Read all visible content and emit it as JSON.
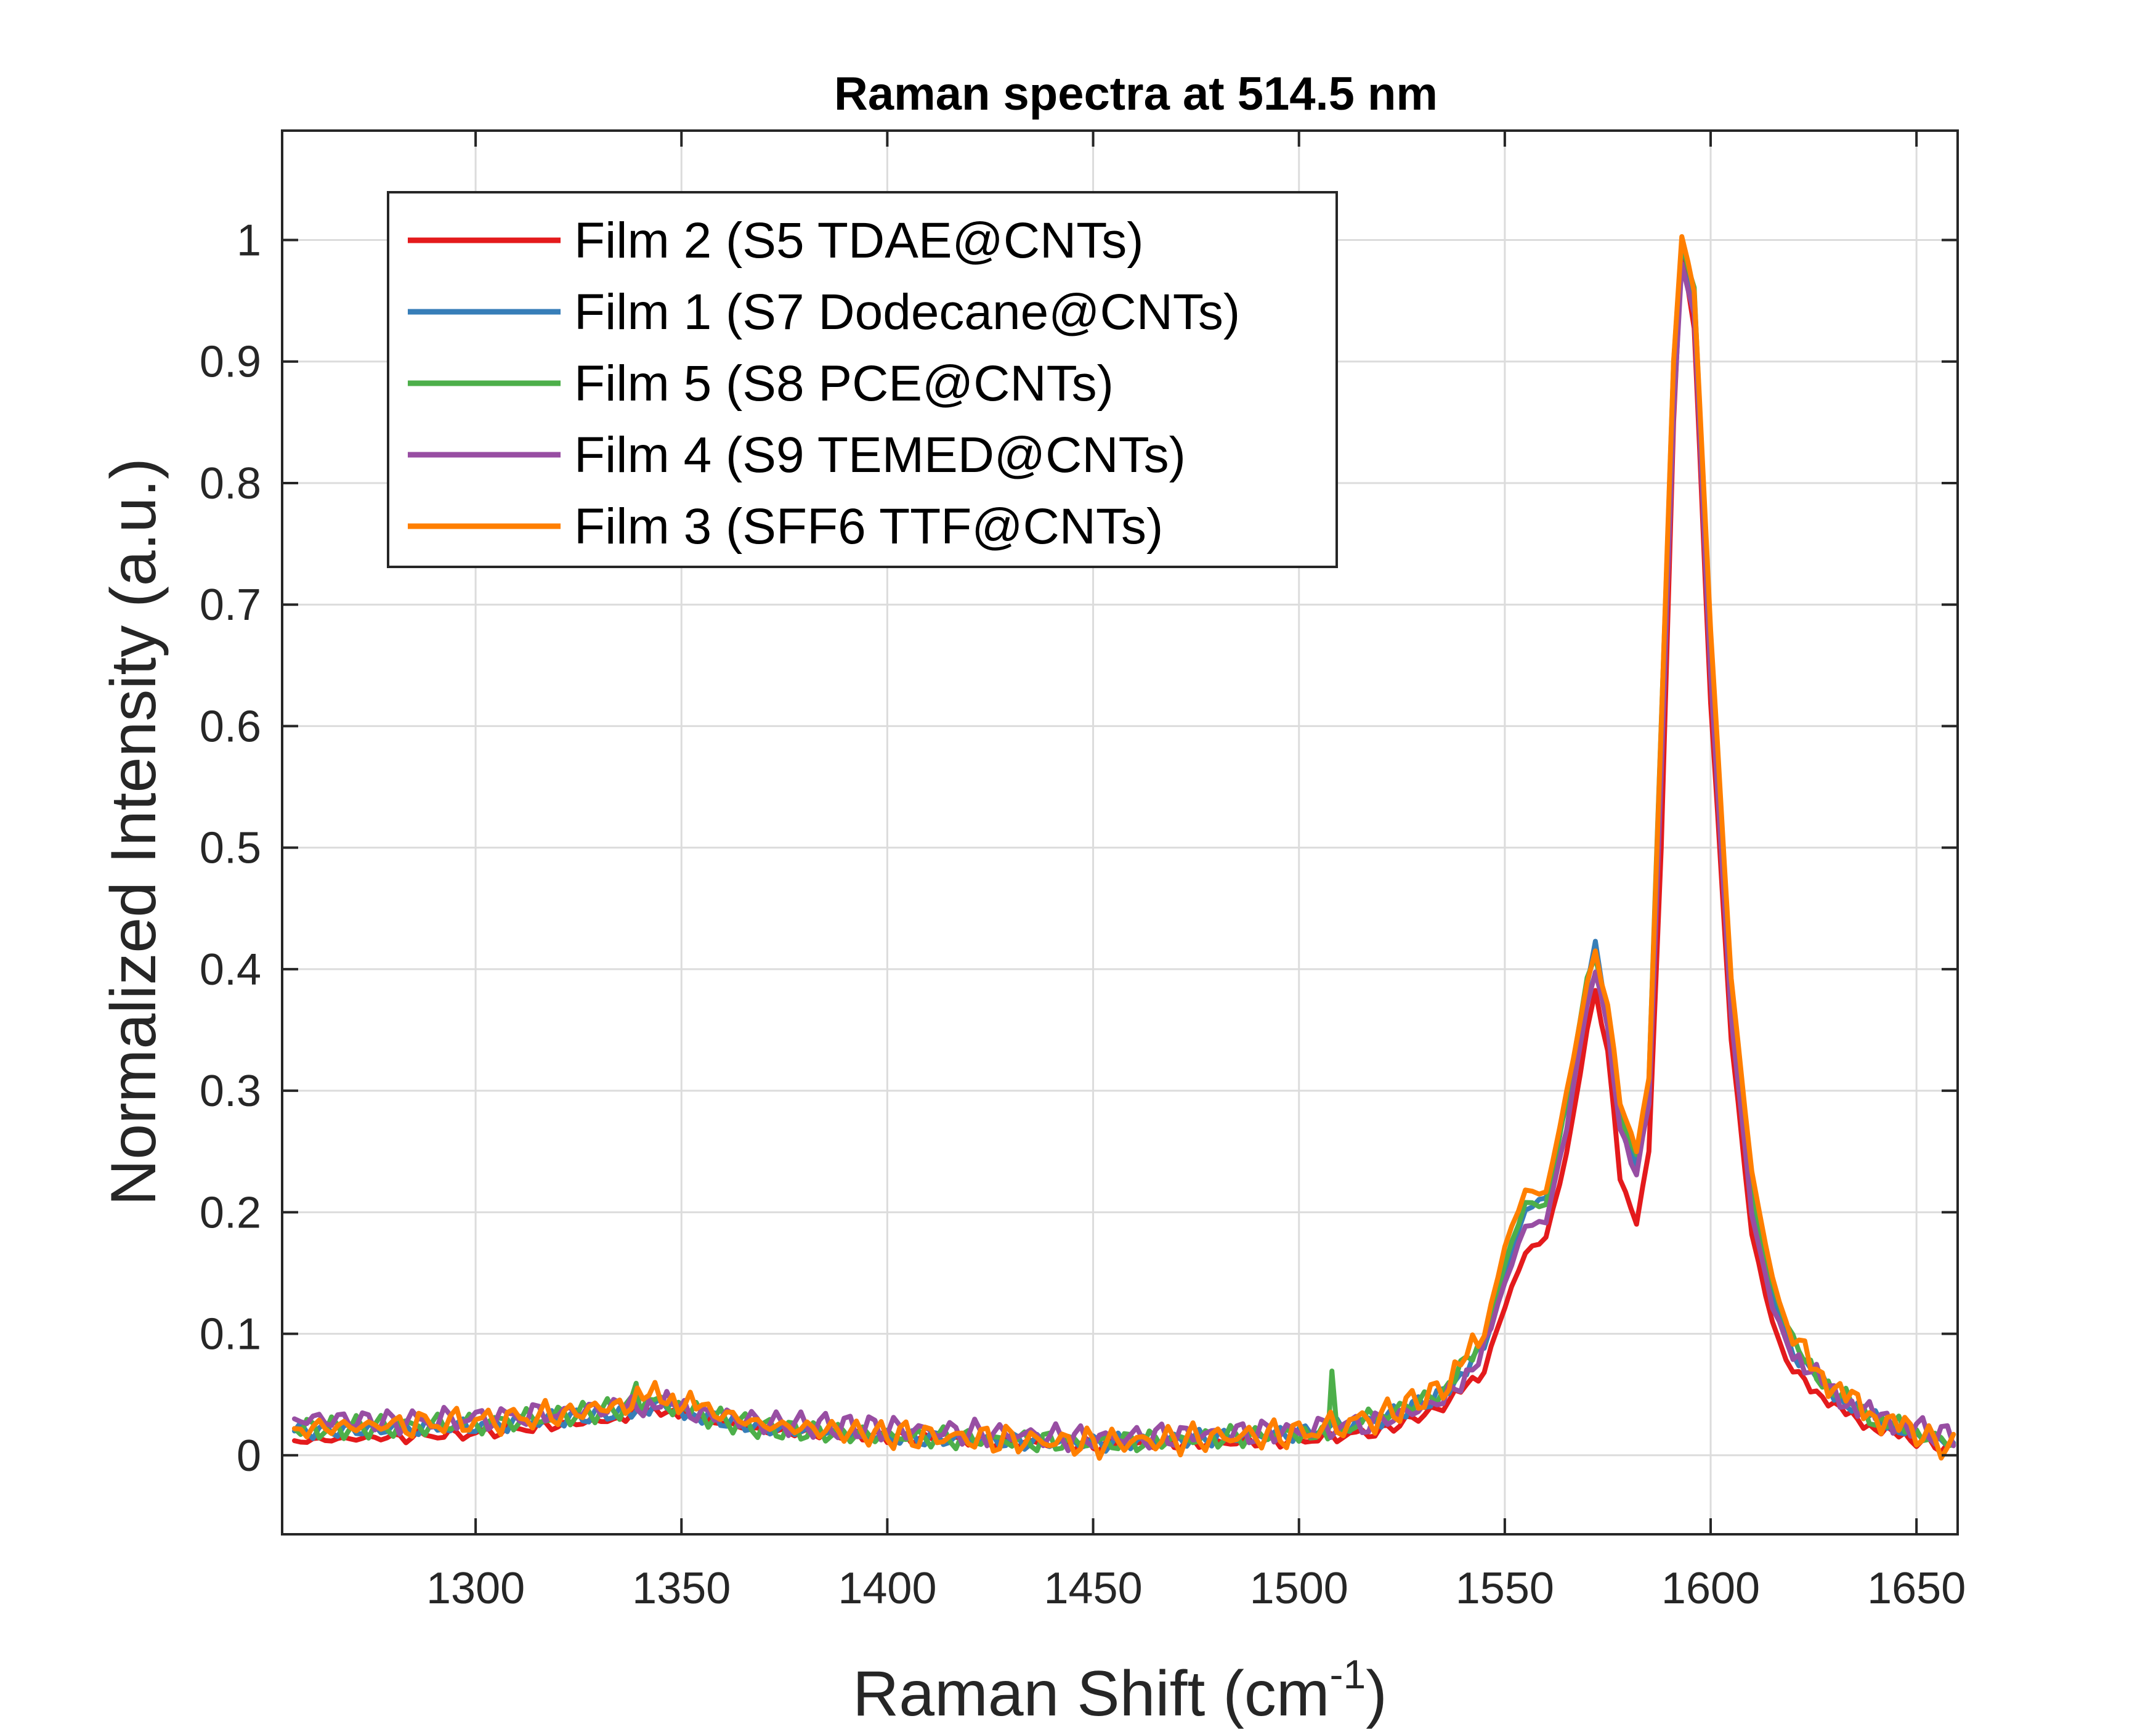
{
  "chart_data": {
    "type": "line",
    "title": "Raman spectra at 514.5 nm",
    "xlabel": "Raman Shift (cm",
    "xlabel_superscript": "-1",
    "xlabel_suffix": ")",
    "ylabel": "Normalized Intensity (a.u.)",
    "xlim": [
      1253,
      1660
    ],
    "ylim": [
      -0.065,
      1.09
    ],
    "xticks": [
      1300,
      1350,
      1400,
      1450,
      1500,
      1550,
      1600,
      1650
    ],
    "xtick_labels": [
      "1300",
      "1350",
      "1400",
      "1450",
      "1500",
      "1550",
      "1600",
      "1650"
    ],
    "yticks": [
      0,
      0.1,
      0.2,
      0.3,
      0.4,
      0.5,
      0.6,
      0.7,
      0.8,
      0.9,
      1
    ],
    "ytick_labels": [
      "0",
      "0.1",
      "0.2",
      "0.3",
      "0.4",
      "0.5",
      "0.6",
      "0.7",
      "0.8",
      "0.9",
      "1"
    ],
    "grid": true,
    "legend_position": "top-left",
    "series": [
      {
        "name": "Film 2 (S5 TDAE@CNTs)",
        "color": "#E41A1C",
        "x": [
          1256,
          1280,
          1300,
          1320,
          1335,
          1345,
          1355,
          1370,
          1400,
          1450,
          1500,
          1520,
          1535,
          1545,
          1550,
          1555,
          1560,
          1565,
          1570,
          1572,
          1575,
          1578,
          1582,
          1585,
          1588,
          1591,
          1593,
          1596,
          1600,
          1605,
          1610,
          1615,
          1620,
          1630,
          1640,
          1650,
          1659
        ],
        "y": [
          0.012,
          0.015,
          0.018,
          0.025,
          0.03,
          0.038,
          0.03,
          0.02,
          0.015,
          0.008,
          0.012,
          0.02,
          0.04,
          0.07,
          0.12,
          0.165,
          0.18,
          0.25,
          0.35,
          0.385,
          0.33,
          0.23,
          0.19,
          0.25,
          0.5,
          0.85,
          0.99,
          0.93,
          0.62,
          0.34,
          0.18,
          0.11,
          0.07,
          0.04,
          0.022,
          0.012,
          0.005
        ]
      },
      {
        "name": "Film 1 (S7 Dodecane@CNTs)",
        "color": "#377EB8",
        "x": [
          1256,
          1280,
          1300,
          1320,
          1335,
          1345,
          1355,
          1370,
          1400,
          1450,
          1500,
          1520,
          1535,
          1545,
          1550,
          1555,
          1560,
          1565,
          1570,
          1572,
          1575,
          1578,
          1582,
          1585,
          1588,
          1591,
          1593,
          1596,
          1600,
          1605,
          1610,
          1615,
          1620,
          1630,
          1640,
          1650,
          1659
        ],
        "y": [
          0.02,
          0.022,
          0.024,
          0.03,
          0.035,
          0.042,
          0.032,
          0.022,
          0.015,
          0.01,
          0.018,
          0.03,
          0.05,
          0.09,
          0.15,
          0.2,
          0.21,
          0.29,
          0.39,
          0.42,
          0.36,
          0.27,
          0.24,
          0.3,
          0.58,
          0.88,
          1.0,
          0.95,
          0.66,
          0.37,
          0.21,
          0.13,
          0.085,
          0.05,
          0.03,
          0.018,
          0.01
        ]
      },
      {
        "name": "Film 5 (S8 PCE@CNTs)",
        "color": "#4DAF4A",
        "x": [
          1256,
          1280,
          1300,
          1320,
          1338,
          1339,
          1340,
          1345,
          1355,
          1370,
          1400,
          1450,
          1500,
          1507,
          1508,
          1509,
          1520,
          1535,
          1545,
          1550,
          1555,
          1560,
          1565,
          1570,
          1572,
          1575,
          1578,
          1582,
          1585,
          1588,
          1591,
          1593,
          1596,
          1600,
          1605,
          1610,
          1615,
          1620,
          1630,
          1640,
          1650,
          1659
        ],
        "y": [
          0.022,
          0.024,
          0.026,
          0.032,
          0.04,
          0.055,
          0.04,
          0.045,
          0.033,
          0.022,
          0.016,
          0.01,
          0.018,
          0.022,
          0.07,
          0.022,
          0.032,
          0.052,
          0.095,
          0.16,
          0.21,
          0.205,
          0.29,
          0.39,
          0.41,
          0.36,
          0.28,
          0.245,
          0.31,
          0.6,
          0.9,
          1.0,
          0.96,
          0.67,
          0.38,
          0.22,
          0.14,
          0.09,
          0.052,
          0.03,
          0.018,
          0.01
        ]
      },
      {
        "name": "Film 4 (S9 TEMED@CNTs)",
        "color": "#984EA3",
        "x": [
          1256,
          1280,
          1300,
          1320,
          1335,
          1345,
          1355,
          1370,
          1400,
          1450,
          1500,
          1520,
          1535,
          1545,
          1550,
          1555,
          1560,
          1565,
          1570,
          1572,
          1575,
          1578,
          1582,
          1585,
          1588,
          1591,
          1593,
          1596,
          1600,
          1605,
          1610,
          1615,
          1620,
          1630,
          1640,
          1650,
          1659
        ],
        "y": [
          0.03,
          0.028,
          0.03,
          0.035,
          0.04,
          0.043,
          0.035,
          0.027,
          0.022,
          0.014,
          0.02,
          0.028,
          0.045,
          0.085,
          0.14,
          0.19,
          0.195,
          0.27,
          0.37,
          0.4,
          0.35,
          0.27,
          0.23,
          0.29,
          0.56,
          0.86,
          0.98,
          0.94,
          0.64,
          0.36,
          0.2,
          0.125,
          0.085,
          0.05,
          0.032,
          0.022,
          0.015
        ]
      },
      {
        "name": "Film 3 (SFF6 TTF@CNTs)",
        "color": "#FF7F00",
        "x": [
          1256,
          1280,
          1300,
          1320,
          1335,
          1345,
          1355,
          1370,
          1400,
          1450,
          1500,
          1520,
          1535,
          1545,
          1550,
          1555,
          1560,
          1565,
          1570,
          1572,
          1575,
          1578,
          1582,
          1585,
          1588,
          1591,
          1593,
          1596,
          1600,
          1605,
          1610,
          1615,
          1620,
          1630,
          1640,
          1650,
          1659
        ],
        "y": [
          0.022,
          0.025,
          0.028,
          0.033,
          0.042,
          0.05,
          0.038,
          0.025,
          0.017,
          0.01,
          0.018,
          0.032,
          0.055,
          0.1,
          0.17,
          0.215,
          0.215,
          0.3,
          0.39,
          0.415,
          0.37,
          0.29,
          0.25,
          0.31,
          0.6,
          0.9,
          1.0,
          0.96,
          0.68,
          0.39,
          0.23,
          0.145,
          0.095,
          0.055,
          0.032,
          0.018,
          0.005
        ]
      }
    ]
  }
}
